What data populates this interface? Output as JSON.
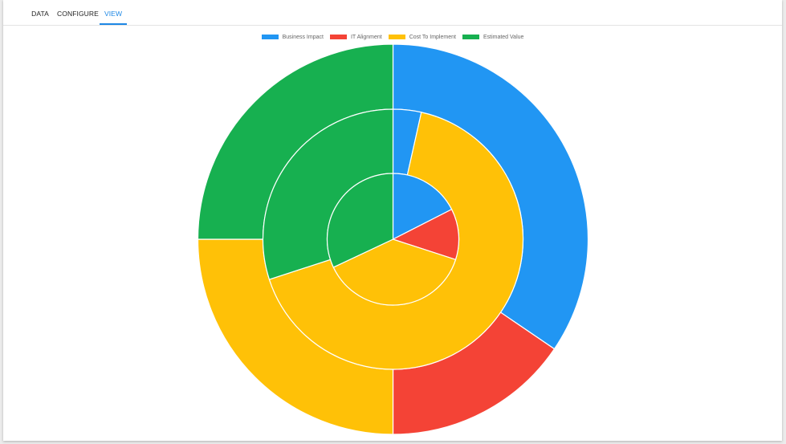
{
  "tabs": [
    {
      "label": "DATA",
      "active": false
    },
    {
      "label": "CONFIGURE",
      "active": false
    },
    {
      "label": "VIEW",
      "active": true
    }
  ],
  "colors": {
    "accent": "#1e88e5",
    "business_impact": "#2196f3",
    "it_alignment": "#f44336",
    "cost_to_implement": "#ffc107",
    "estimated_value": "#17b050"
  },
  "chart_data": {
    "type": "doughnut",
    "legend_position": "top",
    "legend": [
      {
        "label": "Business Impact",
        "color": "#2196f3"
      },
      {
        "label": "IT Alignment",
        "color": "#f44336"
      },
      {
        "label": "Cost To Implement",
        "color": "#ffc107"
      },
      {
        "label": "Estimated Value",
        "color": "#17b050"
      }
    ],
    "rings": [
      {
        "ring": "outer",
        "segments": [
          {
            "category": "Business Impact",
            "value": 34.5
          },
          {
            "category": "IT Alignment",
            "value": 15.5
          },
          {
            "category": "Cost To Implement",
            "value": 25
          },
          {
            "category": "Estimated Value",
            "value": 25
          }
        ]
      },
      {
        "ring": "middle",
        "segments": [
          {
            "category": "Business Impact",
            "value": 3.5
          },
          {
            "category": "Cost To Implement",
            "value": 66.5
          },
          {
            "category": "Estimated Value",
            "value": 30
          }
        ]
      },
      {
        "ring": "inner",
        "segments": [
          {
            "category": "Business Impact",
            "value": 17.5
          },
          {
            "category": "IT Alignment",
            "value": 12.5
          },
          {
            "category": "Cost To Implement",
            "value": 38
          },
          {
            "category": "Estimated Value",
            "value": 32
          }
        ]
      }
    ]
  }
}
